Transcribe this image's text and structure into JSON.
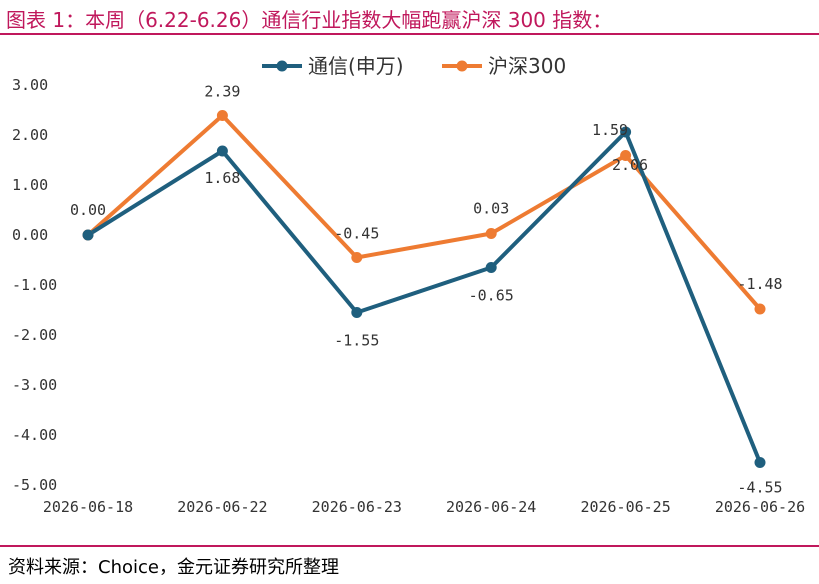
{
  "header": {
    "title": "图表 1：本周（6.22-6.26）通信行业指数大幅跑赢沪深 300 指数：",
    "accent_color": "#c0185c"
  },
  "footer": {
    "source": "资料来源：Choice，金元证券研究所整理"
  },
  "chart_data": {
    "type": "line",
    "title": "",
    "xlabel": "",
    "ylabel": "",
    "categories": [
      "2026-06-18",
      "2026-06-22",
      "2026-06-23",
      "2026-06-24",
      "2026-06-25",
      "2026-06-26"
    ],
    "ylim": [
      -5,
      3
    ],
    "yticks": [
      3,
      2,
      1,
      0,
      -1,
      -2,
      -3,
      -4,
      -5
    ],
    "ytick_labels": [
      "3.00",
      "2.00",
      "1.00",
      "0.00",
      "-1.00",
      "-2.00",
      "-3.00",
      "-4.00",
      "-5.00"
    ],
    "grid": false,
    "legend": "top-center",
    "series": [
      {
        "name": "通信(申万)",
        "color": "#1f5f7e",
        "values": [
          0.0,
          1.68,
          -1.55,
          -0.65,
          2.06,
          -4.55
        ],
        "labels": [
          "0.00",
          "1.68",
          "-1.55",
          "-0.65",
          "2.06",
          "-4.55"
        ]
      },
      {
        "name": "沪深300",
        "color": "#ee7b32",
        "values": [
          0.0,
          2.39,
          -0.45,
          0.03,
          1.59,
          -1.48
        ],
        "labels": [
          "",
          "2.39",
          "-0.45",
          "0.03",
          "1.59",
          "-1.48"
        ]
      }
    ]
  }
}
